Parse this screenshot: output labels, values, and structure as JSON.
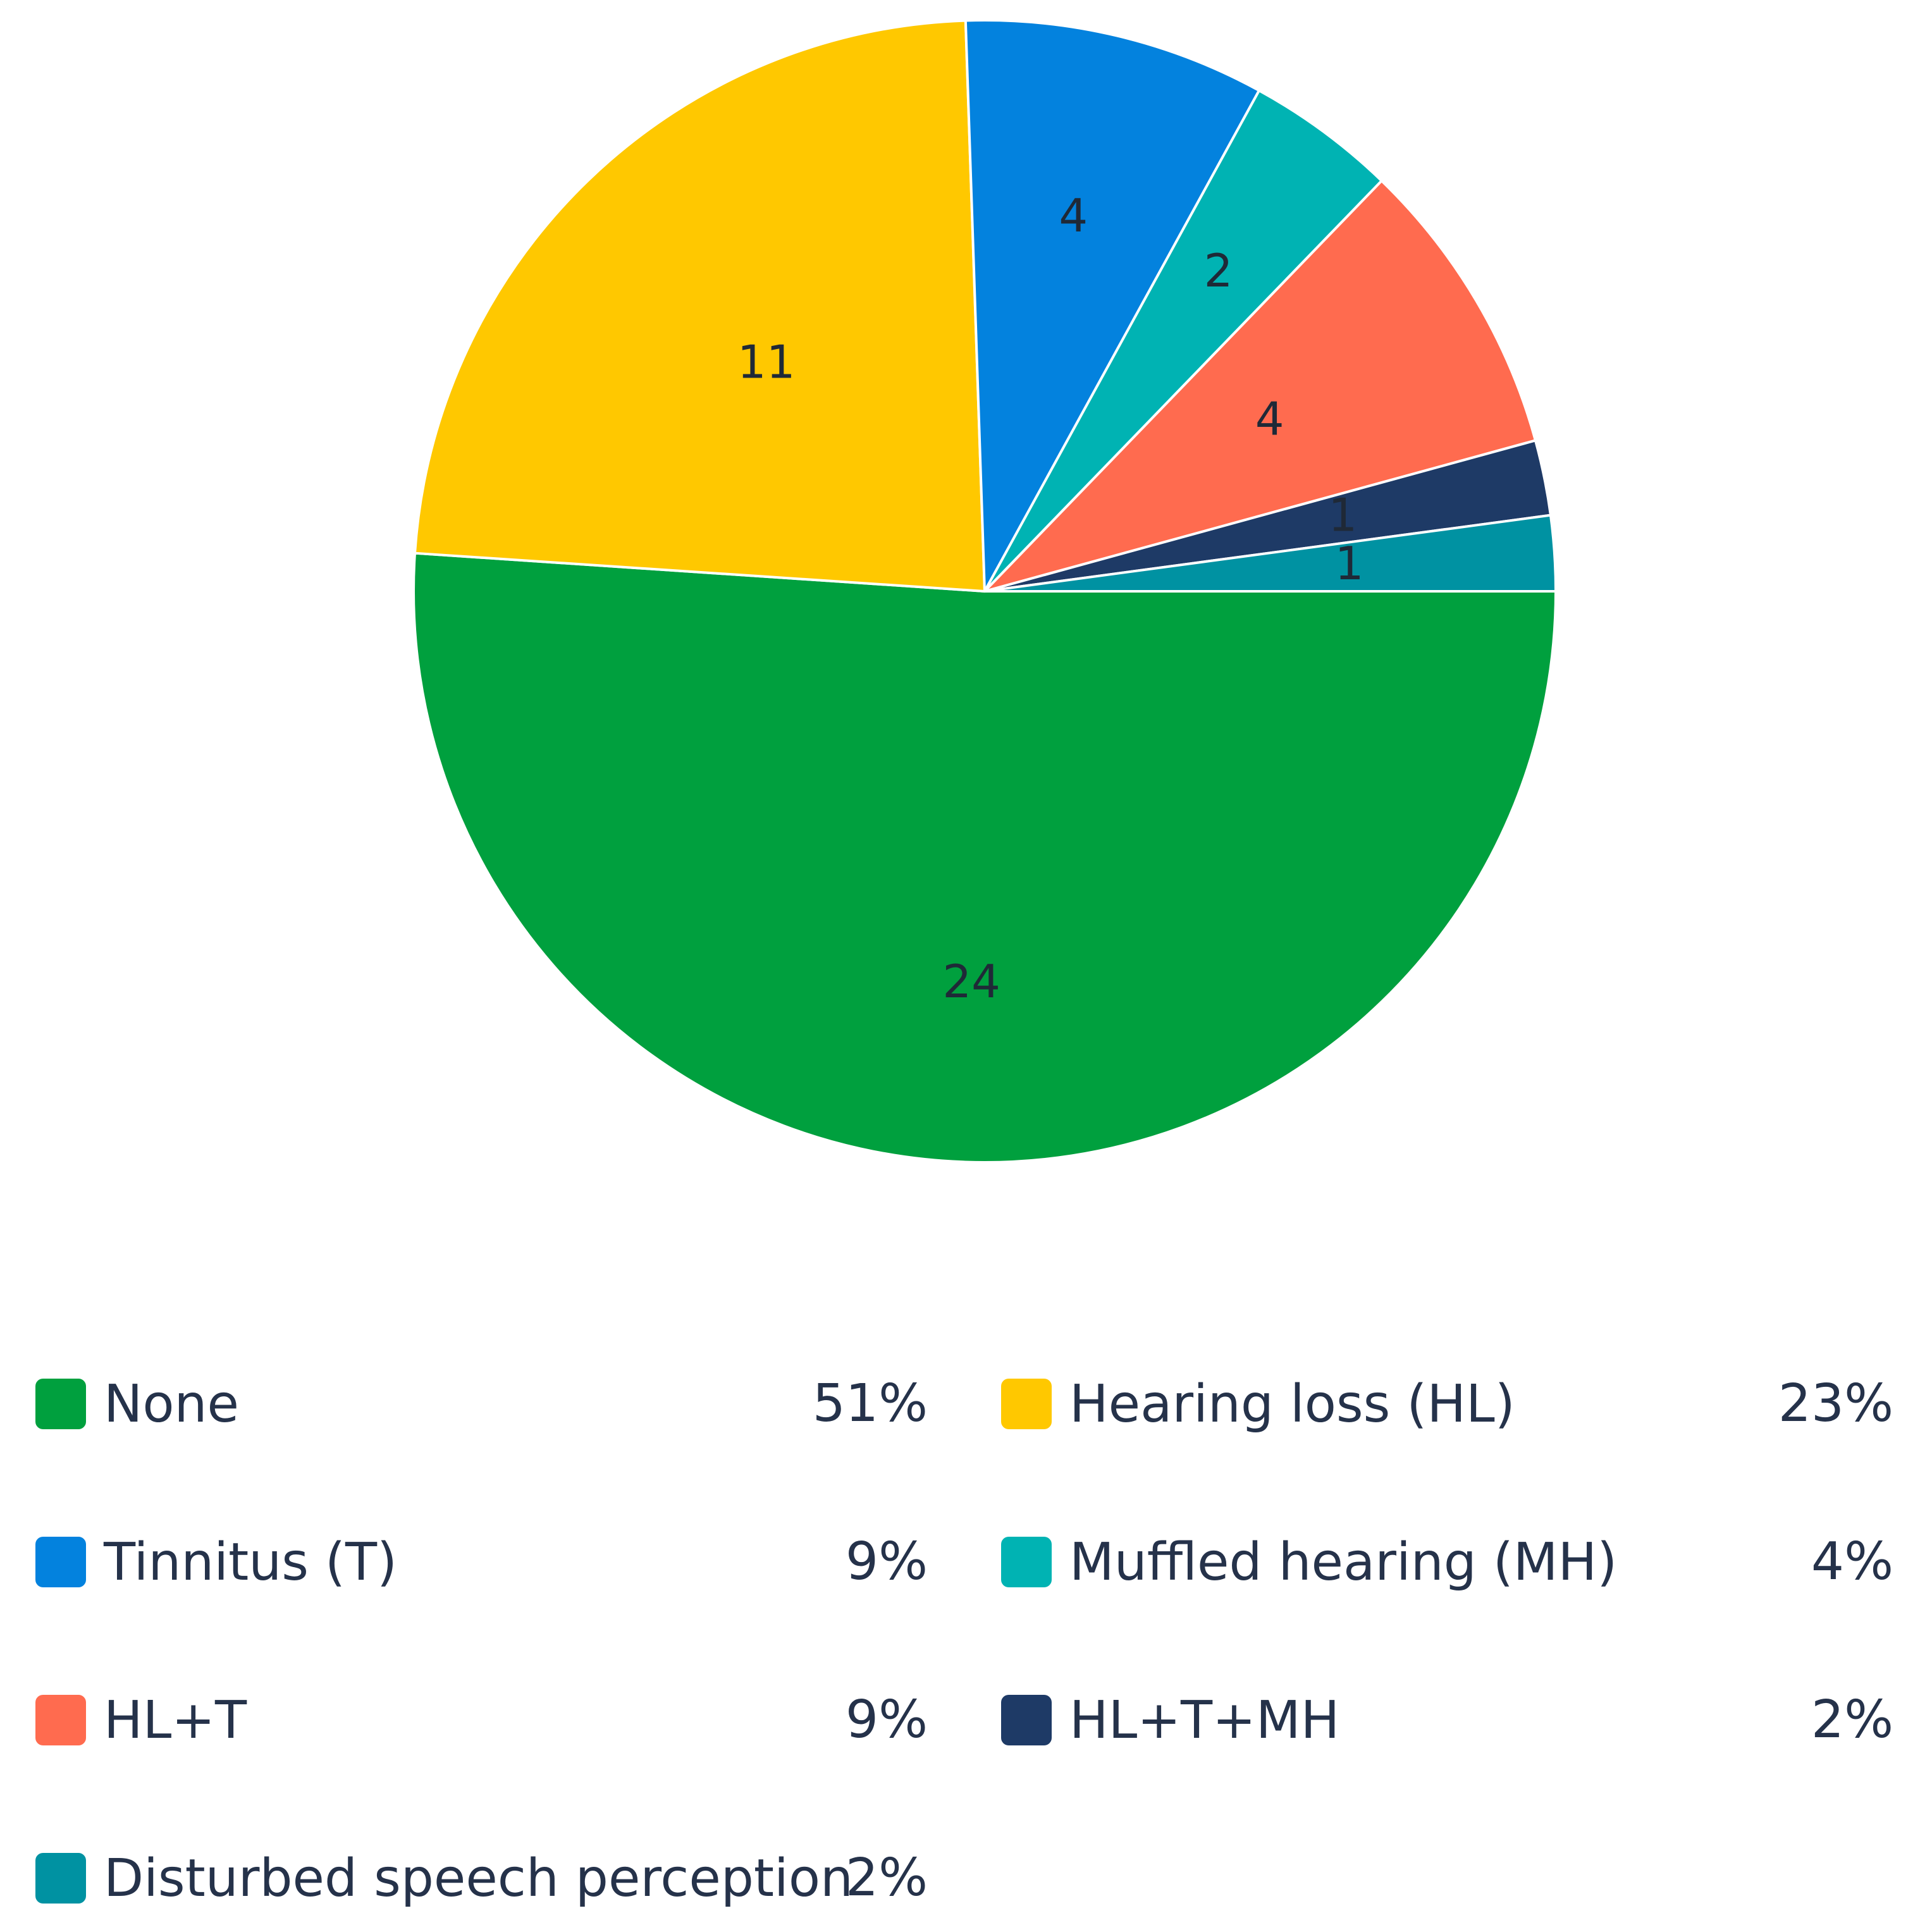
{
  "chart_data": {
    "type": "pie",
    "title": "",
    "slices": [
      {
        "label": "None",
        "value": 24,
        "percent": "51%",
        "color": "#00a03e"
      },
      {
        "label": "Hearing loss (HL)",
        "value": 11,
        "percent": "23%",
        "color": "#ffc800"
      },
      {
        "label": "Tinnitus (T)",
        "value": 4,
        "percent": "9%",
        "color": "#0382de"
      },
      {
        "label": "Muffled hearing (MH)",
        "value": 2,
        "percent": "4%",
        "color": "#00b3b3"
      },
      {
        "label": "HL+T",
        "value": 4,
        "percent": "9%",
        "color": "#ff6b4f"
      },
      {
        "label": "HL+T+MH",
        "value": 1,
        "percent": "2%",
        "color": "#1e3a66"
      },
      {
        "label": "Disturbed speech perception",
        "value": 1,
        "percent": "2%",
        "color": "#0092a2"
      }
    ],
    "legend_placement": "bottom",
    "data_labels": "value"
  }
}
